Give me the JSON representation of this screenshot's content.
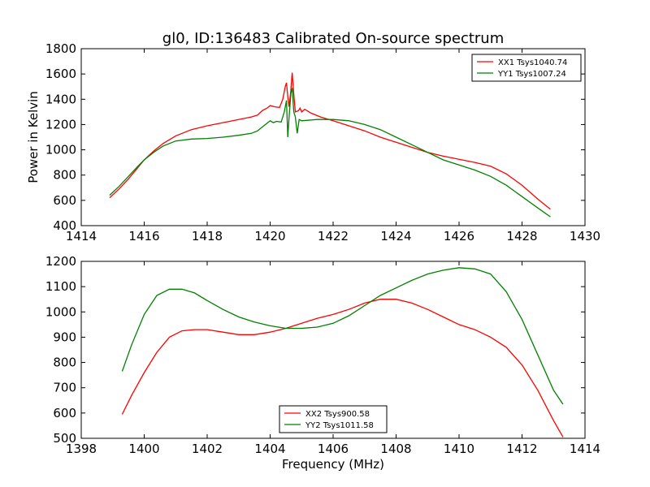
{
  "colors": {
    "xx": "#ff0000",
    "yy": "#008000",
    "frame": "#000000",
    "background": "#ffffff"
  },
  "chart_data": [
    {
      "type": "line",
      "title": "gl0, ID:136483 Calibrated On-source spectrum",
      "xlabel": "",
      "ylabel": "Power in Kelvin",
      "xlim": [
        1414,
        1430
      ],
      "ylim": [
        400,
        1800
      ],
      "xticks": [
        1414,
        1416,
        1418,
        1420,
        1422,
        1424,
        1426,
        1428,
        1430
      ],
      "yticks": [
        400,
        600,
        800,
        1000,
        1200,
        1400,
        1600,
        1800
      ],
      "xtick_labels": [
        "1414",
        "1416",
        "1418",
        "1420",
        "1422",
        "1424",
        "1426",
        "1428",
        "1430"
      ],
      "ytick_labels": [
        "400",
        "600",
        "800",
        "1000",
        "1200",
        "1400",
        "1600",
        "1800"
      ],
      "grid": false,
      "legend_position": "top-right",
      "series": [
        {
          "name": "XX1 Tsys1040.74",
          "color": "#ff0000",
          "points": [
            [
              1414.9,
              620
            ],
            [
              1415.2,
              690
            ],
            [
              1415.5,
              770
            ],
            [
              1415.8,
              860
            ],
            [
              1416.0,
              920
            ],
            [
              1416.3,
              990
            ],
            [
              1416.6,
              1050
            ],
            [
              1417.0,
              1110
            ],
            [
              1417.5,
              1160
            ],
            [
              1418.0,
              1190
            ],
            [
              1418.5,
              1215
            ],
            [
              1419.0,
              1240
            ],
            [
              1419.4,
              1260
            ],
            [
              1419.6,
              1275
            ],
            [
              1419.75,
              1310
            ],
            [
              1419.9,
              1330
            ],
            [
              1420.0,
              1350
            ],
            [
              1420.15,
              1340
            ],
            [
              1420.3,
              1335
            ],
            [
              1420.4,
              1400
            ],
            [
              1420.48,
              1500
            ],
            [
              1420.52,
              1530
            ],
            [
              1420.56,
              1420
            ],
            [
              1420.6,
              1340
            ],
            [
              1420.65,
              1450
            ],
            [
              1420.7,
              1610
            ],
            [
              1420.75,
              1440
            ],
            [
              1420.8,
              1300
            ],
            [
              1420.9,
              1310
            ],
            [
              1420.95,
              1330
            ],
            [
              1421.0,
              1300
            ],
            [
              1421.1,
              1320
            ],
            [
              1421.3,
              1290
            ],
            [
              1421.6,
              1260
            ],
            [
              1422.0,
              1230
            ],
            [
              1422.5,
              1190
            ],
            [
              1423.0,
              1150
            ],
            [
              1423.5,
              1100
            ],
            [
              1424.0,
              1060
            ],
            [
              1424.5,
              1020
            ],
            [
              1425.0,
              980
            ],
            [
              1425.5,
              950
            ],
            [
              1426.0,
              925
            ],
            [
              1426.5,
              900
            ],
            [
              1427.0,
              870
            ],
            [
              1427.5,
              810
            ],
            [
              1428.0,
              720
            ],
            [
              1428.5,
              610
            ],
            [
              1428.9,
              530
            ]
          ]
        },
        {
          "name": "YY1 Tsys1007.24",
          "color": "#008000",
          "points": [
            [
              1414.9,
              640
            ],
            [
              1415.2,
              710
            ],
            [
              1415.5,
              790
            ],
            [
              1415.8,
              870
            ],
            [
              1416.0,
              920
            ],
            [
              1416.3,
              980
            ],
            [
              1416.6,
              1030
            ],
            [
              1417.0,
              1070
            ],
            [
              1417.5,
              1085
            ],
            [
              1418.0,
              1090
            ],
            [
              1418.5,
              1100
            ],
            [
              1419.0,
              1115
            ],
            [
              1419.4,
              1130
            ],
            [
              1419.6,
              1150
            ],
            [
              1419.75,
              1180
            ],
            [
              1419.9,
              1210
            ],
            [
              1420.0,
              1230
            ],
            [
              1420.1,
              1215
            ],
            [
              1420.2,
              1225
            ],
            [
              1420.35,
              1220
            ],
            [
              1420.45,
              1300
            ],
            [
              1420.52,
              1390
            ],
            [
              1420.56,
              1100
            ],
            [
              1420.6,
              1250
            ],
            [
              1420.66,
              1450
            ],
            [
              1420.7,
              1490
            ],
            [
              1420.75,
              1300
            ],
            [
              1420.8,
              1260
            ],
            [
              1420.86,
              1130
            ],
            [
              1420.92,
              1240
            ],
            [
              1421.0,
              1230
            ],
            [
              1421.5,
              1240
            ],
            [
              1422.0,
              1240
            ],
            [
              1422.5,
              1230
            ],
            [
              1423.0,
              1200
            ],
            [
              1423.5,
              1160
            ],
            [
              1424.0,
              1100
            ],
            [
              1424.5,
              1040
            ],
            [
              1425.0,
              980
            ],
            [
              1425.5,
              920
            ],
            [
              1426.0,
              880
            ],
            [
              1426.5,
              840
            ],
            [
              1427.0,
              790
            ],
            [
              1427.5,
              720
            ],
            [
              1428.0,
              630
            ],
            [
              1428.5,
              540
            ],
            [
              1428.9,
              470
            ]
          ]
        }
      ]
    },
    {
      "type": "line",
      "title": "",
      "xlabel": "Frequency (MHz)",
      "ylabel": "",
      "xlim": [
        1398,
        1414
      ],
      "ylim": [
        500,
        1200
      ],
      "xticks": [
        1398,
        1400,
        1402,
        1404,
        1406,
        1408,
        1410,
        1412,
        1414
      ],
      "yticks": [
        500,
        600,
        700,
        800,
        900,
        1000,
        1100,
        1200
      ],
      "xtick_labels": [
        "1398",
        "1400",
        "1402",
        "1404",
        "1406",
        "1408",
        "1410",
        "1412",
        "1414"
      ],
      "ytick_labels": [
        "500",
        "600",
        "700",
        "800",
        "900",
        "1000",
        "1100",
        "1200"
      ],
      "grid": false,
      "legend_position": "bottom-center",
      "series": [
        {
          "name": "XX2 Tsys900.58",
          "color": "#ff0000",
          "points": [
            [
              1399.3,
              595
            ],
            [
              1399.6,
              670
            ],
            [
              1400.0,
              760
            ],
            [
              1400.4,
              840
            ],
            [
              1400.8,
              900
            ],
            [
              1401.2,
              925
            ],
            [
              1401.6,
              930
            ],
            [
              1402.0,
              930
            ],
            [
              1402.5,
              920
            ],
            [
              1403.0,
              910
            ],
            [
              1403.5,
              910
            ],
            [
              1404.0,
              920
            ],
            [
              1404.5,
              935
            ],
            [
              1405.0,
              955
            ],
            [
              1405.5,
              975
            ],
            [
              1406.0,
              990
            ],
            [
              1406.5,
              1010
            ],
            [
              1407.0,
              1035
            ],
            [
              1407.5,
              1050
            ],
            [
              1408.0,
              1050
            ],
            [
              1408.5,
              1035
            ],
            [
              1409.0,
              1010
            ],
            [
              1409.5,
              980
            ],
            [
              1410.0,
              950
            ],
            [
              1410.5,
              930
            ],
            [
              1411.0,
              900
            ],
            [
              1411.5,
              860
            ],
            [
              1412.0,
              790
            ],
            [
              1412.5,
              690
            ],
            [
              1413.0,
              570
            ],
            [
              1413.3,
              505
            ]
          ]
        },
        {
          "name": "YY2 Tsys1011.58",
          "color": "#008000",
          "points": [
            [
              1399.3,
              765
            ],
            [
              1399.6,
              870
            ],
            [
              1400.0,
              990
            ],
            [
              1400.4,
              1065
            ],
            [
              1400.8,
              1090
            ],
            [
              1401.2,
              1090
            ],
            [
              1401.6,
              1075
            ],
            [
              1402.0,
              1045
            ],
            [
              1402.5,
              1010
            ],
            [
              1403.0,
              980
            ],
            [
              1403.5,
              960
            ],
            [
              1404.0,
              945
            ],
            [
              1404.5,
              935
            ],
            [
              1405.0,
              935
            ],
            [
              1405.5,
              940
            ],
            [
              1406.0,
              955
            ],
            [
              1406.5,
              985
            ],
            [
              1407.0,
              1025
            ],
            [
              1407.5,
              1065
            ],
            [
              1408.0,
              1095
            ],
            [
              1408.5,
              1125
            ],
            [
              1409.0,
              1150
            ],
            [
              1409.5,
              1165
            ],
            [
              1410.0,
              1175
            ],
            [
              1410.5,
              1170
            ],
            [
              1411.0,
              1150
            ],
            [
              1411.5,
              1080
            ],
            [
              1412.0,
              970
            ],
            [
              1412.5,
              830
            ],
            [
              1413.0,
              690
            ],
            [
              1413.3,
              635
            ]
          ]
        }
      ]
    }
  ]
}
